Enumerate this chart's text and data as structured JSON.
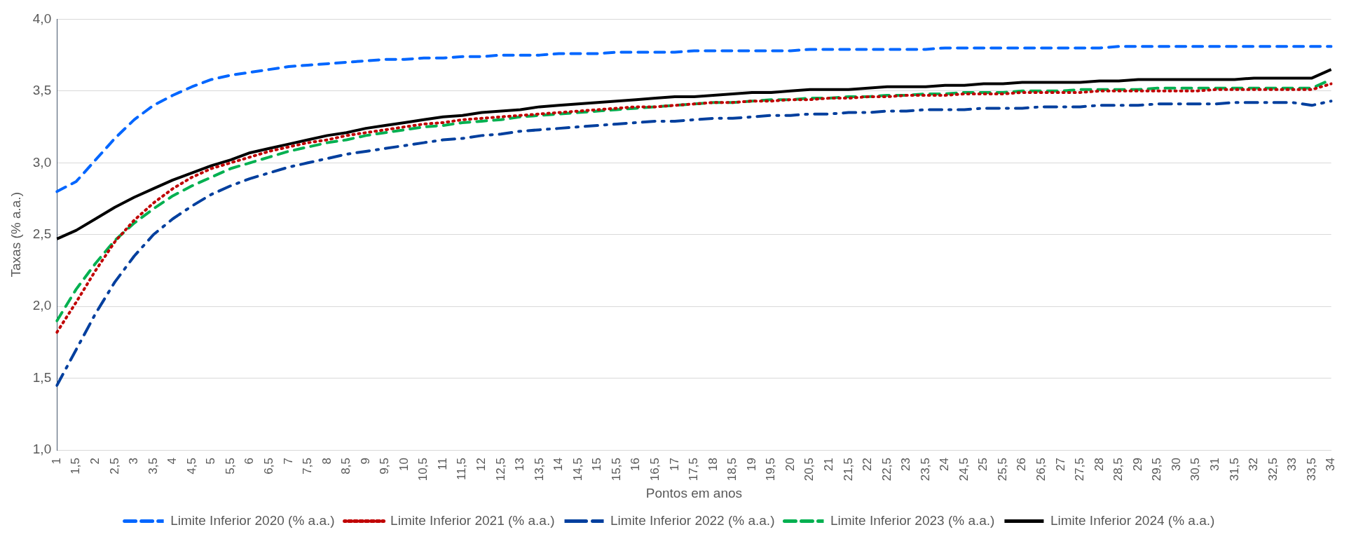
{
  "chart_data": {
    "type": "line",
    "xlabel": "Pontos em anos",
    "ylabel": "Taxas (% a.a.)",
    "categories": [
      "1",
      "1,5",
      "2",
      "2,5",
      "3",
      "3,5",
      "4",
      "4,5",
      "5",
      "5,5",
      "6",
      "6,5",
      "7",
      "7,5",
      "8",
      "8,5",
      "9",
      "9,5",
      "10",
      "10,5",
      "11",
      "11,5",
      "12",
      "12,5",
      "13",
      "13,5",
      "14",
      "14,5",
      "15",
      "15,5",
      "16",
      "16,5",
      "17",
      "17,5",
      "18",
      "18,5",
      "19",
      "19,5",
      "20",
      "20,5",
      "21",
      "21,5",
      "22",
      "22,5",
      "23",
      "23,5",
      "24",
      "24,5",
      "25",
      "25,5",
      "26",
      "26,5",
      "27",
      "27,5",
      "28",
      "28,5",
      "29",
      "29,5",
      "30",
      "30,5",
      "31",
      "31,5",
      "32",
      "32,5",
      "33",
      "33,5",
      "34"
    ],
    "ylim": [
      1,
      4
    ],
    "yticks": [
      {
        "value": 1,
        "label": "1,0"
      },
      {
        "value": 1.5,
        "label": "1,5"
      },
      {
        "value": 2,
        "label": "2,0"
      },
      {
        "value": 2.5,
        "label": "2,5"
      },
      {
        "value": 3,
        "label": "3,0"
      },
      {
        "value": 3.5,
        "label": "3,5"
      },
      {
        "value": 4,
        "label": "4,0"
      }
    ],
    "grid": "y",
    "legend": "bottom",
    "marker": "none",
    "series": [
      {
        "name": "Limite Inferior 2020 (% a.a.)",
        "color": "#0066ff",
        "line_style": "dashed",
        "values": [
          2.8,
          2.87,
          3.02,
          3.17,
          3.3,
          3.4,
          3.47,
          3.53,
          3.58,
          3.61,
          3.63,
          3.65,
          3.67,
          3.68,
          3.69,
          3.7,
          3.71,
          3.72,
          3.72,
          3.73,
          3.73,
          3.74,
          3.74,
          3.75,
          3.75,
          3.75,
          3.76,
          3.76,
          3.76,
          3.77,
          3.77,
          3.77,
          3.77,
          3.78,
          3.78,
          3.78,
          3.78,
          3.78,
          3.78,
          3.79,
          3.79,
          3.79,
          3.79,
          3.79,
          3.79,
          3.79,
          3.8,
          3.8,
          3.8,
          3.8,
          3.8,
          3.8,
          3.8,
          3.8,
          3.8,
          3.81,
          3.81,
          3.81,
          3.81,
          3.81,
          3.81,
          3.81,
          3.81,
          3.81,
          3.81,
          3.81,
          3.81
        ]
      },
      {
        "name": "Limite Inferior 2021 (% a.a.)",
        "color": "#c00000",
        "line_style": "dotted",
        "values": [
          1.82,
          2.03,
          2.25,
          2.45,
          2.6,
          2.72,
          2.82,
          2.9,
          2.96,
          3.0,
          3.04,
          3.08,
          3.11,
          3.14,
          3.16,
          3.19,
          3.21,
          3.23,
          3.25,
          3.27,
          3.28,
          3.3,
          3.31,
          3.32,
          3.33,
          3.34,
          3.35,
          3.36,
          3.37,
          3.38,
          3.39,
          3.39,
          3.4,
          3.41,
          3.42,
          3.42,
          3.43,
          3.43,
          3.44,
          3.44,
          3.45,
          3.45,
          3.46,
          3.46,
          3.47,
          3.47,
          3.47,
          3.48,
          3.48,
          3.48,
          3.49,
          3.49,
          3.49,
          3.49,
          3.5,
          3.5,
          3.5,
          3.5,
          3.5,
          3.5,
          3.51,
          3.51,
          3.51,
          3.51,
          3.51,
          3.51,
          3.55
        ]
      },
      {
        "name": "Limite Inferior 2022 (% a.a.)",
        "color": "#003f9e",
        "line_style": "dashdot",
        "values": [
          1.45,
          1.7,
          1.95,
          2.17,
          2.35,
          2.5,
          2.61,
          2.7,
          2.78,
          2.84,
          2.89,
          2.93,
          2.97,
          3.0,
          3.03,
          3.06,
          3.08,
          3.1,
          3.12,
          3.14,
          3.16,
          3.17,
          3.19,
          3.2,
          3.22,
          3.23,
          3.24,
          3.25,
          3.26,
          3.27,
          3.28,
          3.29,
          3.29,
          3.3,
          3.31,
          3.31,
          3.32,
          3.33,
          3.33,
          3.34,
          3.34,
          3.35,
          3.35,
          3.36,
          3.36,
          3.37,
          3.37,
          3.37,
          3.38,
          3.38,
          3.38,
          3.39,
          3.39,
          3.39,
          3.4,
          3.4,
          3.4,
          3.41,
          3.41,
          3.41,
          3.41,
          3.42,
          3.42,
          3.42,
          3.42,
          3.4,
          3.43
        ]
      },
      {
        "name": "Limite Inferior 2023 (% a.a.)",
        "color": "#00b050",
        "line_style": "dashed",
        "values": [
          1.9,
          2.12,
          2.3,
          2.46,
          2.58,
          2.68,
          2.77,
          2.84,
          2.9,
          2.96,
          3.0,
          3.04,
          3.08,
          3.11,
          3.14,
          3.16,
          3.19,
          3.21,
          3.23,
          3.25,
          3.26,
          3.28,
          3.29,
          3.3,
          3.32,
          3.33,
          3.34,
          3.35,
          3.36,
          3.37,
          3.38,
          3.39,
          3.4,
          3.41,
          3.42,
          3.42,
          3.43,
          3.44,
          3.44,
          3.45,
          3.45,
          3.46,
          3.46,
          3.47,
          3.47,
          3.48,
          3.48,
          3.49,
          3.49,
          3.49,
          3.5,
          3.5,
          3.5,
          3.51,
          3.51,
          3.51,
          3.51,
          3.52,
          3.52,
          3.52,
          3.52,
          3.52,
          3.52,
          3.52,
          3.52,
          3.52,
          3.58
        ]
      },
      {
        "name": "Limite Inferior 2024 (% a.a.)",
        "color": "#000000",
        "line_style": "solid",
        "values": [
          2.47,
          2.53,
          2.61,
          2.69,
          2.76,
          2.82,
          2.88,
          2.93,
          2.98,
          3.02,
          3.07,
          3.1,
          3.13,
          3.16,
          3.19,
          3.21,
          3.24,
          3.26,
          3.28,
          3.3,
          3.32,
          3.33,
          3.35,
          3.36,
          3.37,
          3.39,
          3.4,
          3.41,
          3.42,
          3.43,
          3.44,
          3.45,
          3.46,
          3.46,
          3.47,
          3.48,
          3.49,
          3.49,
          3.5,
          3.51,
          3.51,
          3.51,
          3.52,
          3.53,
          3.53,
          3.53,
          3.54,
          3.54,
          3.55,
          3.55,
          3.56,
          3.56,
          3.56,
          3.56,
          3.57,
          3.57,
          3.58,
          3.58,
          3.58,
          3.58,
          3.58,
          3.58,
          3.59,
          3.59,
          3.59,
          3.59,
          3.65
        ]
      }
    ]
  }
}
